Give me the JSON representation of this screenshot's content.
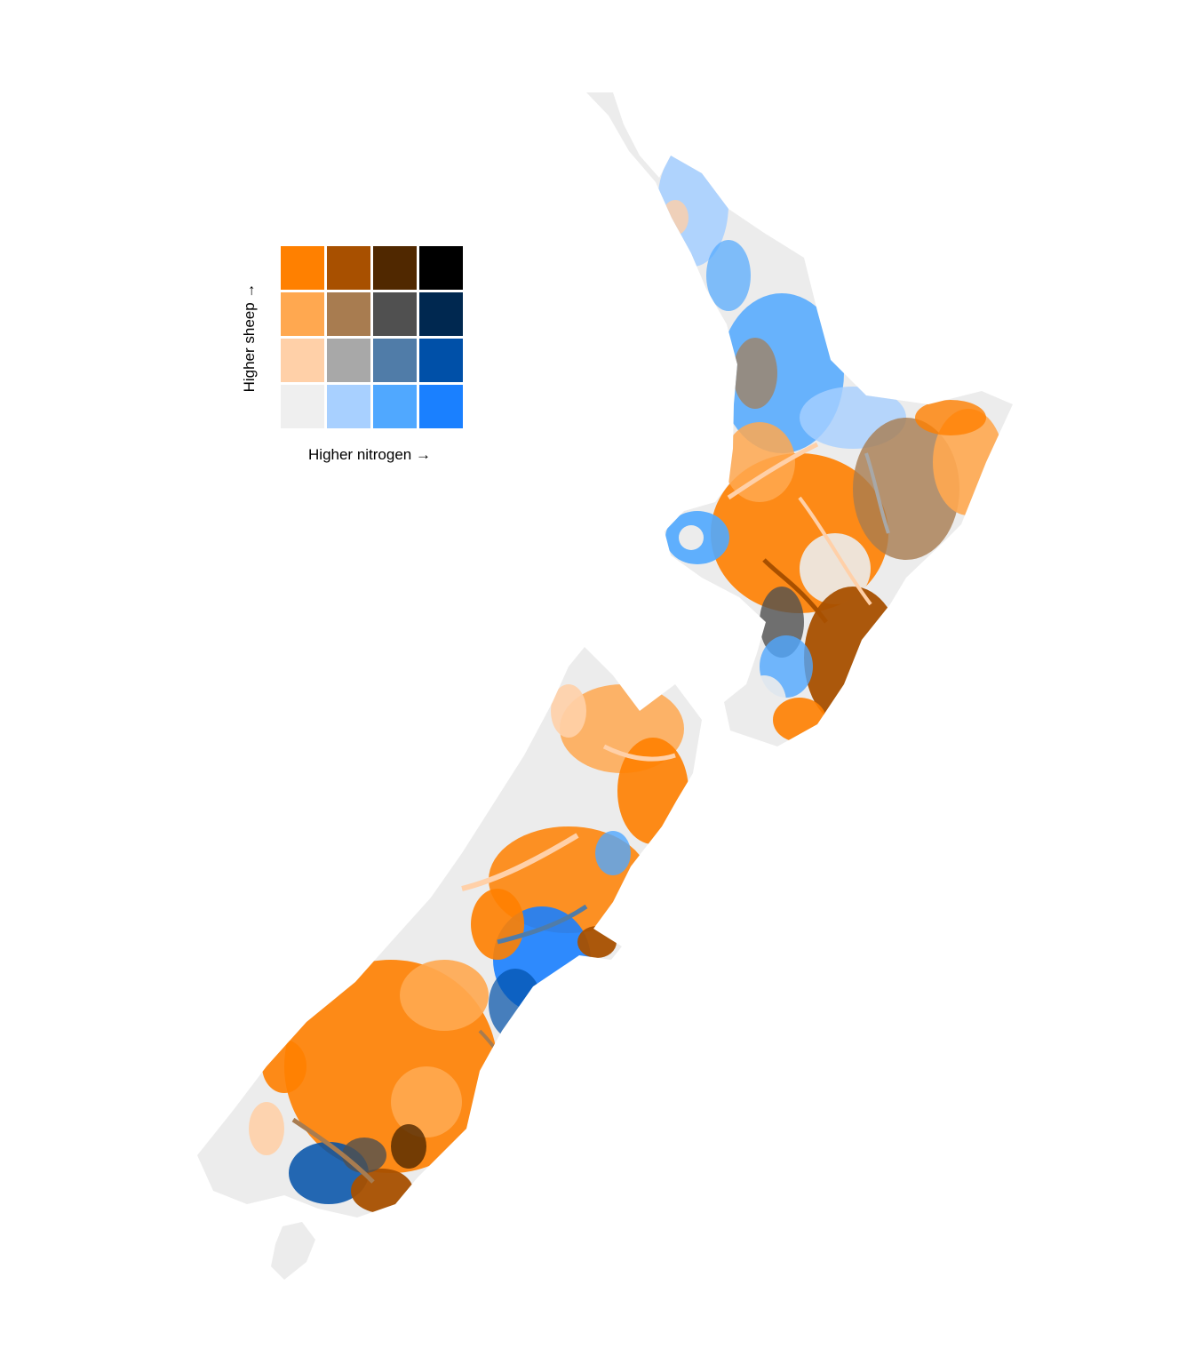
{
  "legend": {
    "x_label": "Higher nitrogen →",
    "y_label": "Higher sheep →",
    "grid": [
      [
        "#ff8000",
        "#a85000",
        "#502800",
        "#000000"
      ],
      [
        "#ffa850",
        "#a87c50",
        "#505050",
        "#002850"
      ],
      [
        "#ffd0a8",
        "#a8a8a8",
        "#507ca8",
        "#0050a8"
      ],
      [
        "#efefef",
        "#a8d0ff",
        "#50a8ff",
        "#1a80ff"
      ]
    ]
  },
  "colors": {
    "land_base": "#ececec",
    "white_streams": "#ffffff"
  }
}
